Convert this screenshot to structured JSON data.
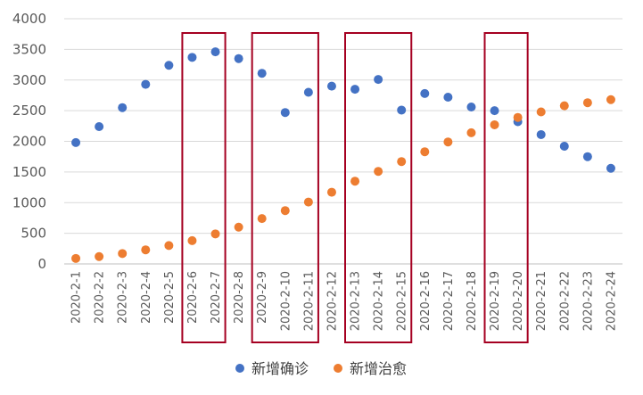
{
  "chart_data": {
    "type": "scatter",
    "title": "",
    "xlabel": "",
    "ylabel": "",
    "ylim": [
      0,
      4000
    ],
    "yticks": [
      0,
      500,
      1000,
      1500,
      2000,
      2500,
      3000,
      3500,
      4000
    ],
    "grid": "horizontal",
    "legend_position": "bottom",
    "categories": [
      "2020-2-1",
      "2020-2-2",
      "2020-2-3",
      "2020-2-4",
      "2020-2-5",
      "2020-2-6",
      "2020-2-7",
      "2020-2-8",
      "2020-2-9",
      "2020-2-10",
      "2020-2-11",
      "2020-2-12",
      "2020-2-13",
      "2020-2-14",
      "2020-2-15",
      "2020-2-16",
      "2020-2-17",
      "2020-2-18",
      "2020-2-19",
      "2020-2-20",
      "2020-2-21",
      "2020-2-22",
      "2020-2-23",
      "2020-2-24"
    ],
    "series": [
      {
        "name": "新增确诊",
        "color": "#4472C4",
        "values": [
          1980,
          2240,
          2550,
          2930,
          3240,
          3370,
          3460,
          3350,
          3110,
          2470,
          2800,
          2900,
          2850,
          3010,
          2510,
          2780,
          2720,
          2560,
          2500,
          2320,
          2110,
          1920,
          1750,
          1560
        ]
      },
      {
        "name": "新增治愈",
        "color": "#ED7D31",
        "values": [
          90,
          120,
          170,
          230,
          300,
          380,
          490,
          600,
          740,
          870,
          1010,
          1170,
          1350,
          1510,
          1670,
          1830,
          1990,
          2140,
          2270,
          2390,
          2480,
          2580,
          2630,
          2680
        ]
      }
    ],
    "highlight_boxes": [
      {
        "from": "2020-2-6",
        "to": "2020-2-7"
      },
      {
        "from": "2020-2-9",
        "to": "2020-2-11"
      },
      {
        "from": "2020-2-13",
        "to": "2020-2-15"
      },
      {
        "from": "2020-2-19",
        "to": "2020-2-20"
      }
    ],
    "highlight_color": "#A50021",
    "gridline_color": "#D9D9D9",
    "axis_color": "#BFBFBF"
  }
}
